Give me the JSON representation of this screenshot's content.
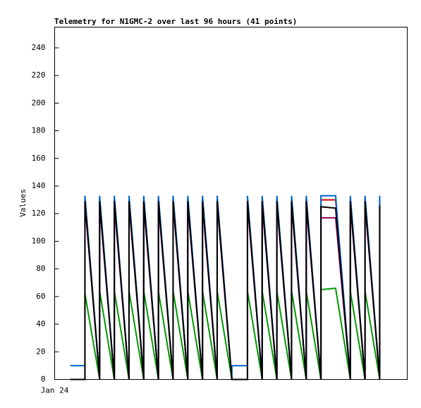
{
  "chart_data": {
    "type": "line",
    "title": "Telemetry for N1GMC-2 over last 96 hours (41 points)",
    "y_label": "Values",
    "xlim": [
      0,
      96
    ],
    "xticks": [
      {
        "value": 0,
        "label": "Jan 24"
      }
    ],
    "ylim": [
      0,
      255
    ],
    "yticks": [
      0,
      20,
      40,
      60,
      80,
      100,
      120,
      140,
      160,
      180,
      200,
      220,
      240
    ],
    "x": [
      4.25,
      8.25,
      8.25,
      12.25,
      12.25,
      16.25,
      16.25,
      20.25,
      20.25,
      24.25,
      24.25,
      28.25,
      28.25,
      32.25,
      32.25,
      36.25,
      36.25,
      40.25,
      40.25,
      44.25,
      44.25,
      48.25,
      48.25,
      52.5,
      52.5,
      56.5,
      56.5,
      60.5,
      60.5,
      64.5,
      64.5,
      68.5,
      68.5,
      72.5,
      72.5,
      76.5,
      80.5,
      80.5,
      84.5,
      84.5,
      88.5,
      88.5
    ],
    "series": [
      {
        "color": "#009900",
        "values": [
          0,
          0,
          62,
          0,
          64,
          0,
          64,
          0,
          64,
          0,
          64,
          0,
          64,
          0,
          64,
          0,
          64,
          0,
          64,
          0,
          64,
          0,
          0,
          0,
          64,
          0,
          64,
          0,
          64,
          0,
          64,
          0,
          64,
          0,
          65,
          66,
          0,
          64,
          0,
          64,
          0,
          64
        ]
      },
      {
        "color": "#990066",
        "values": [
          0,
          0,
          127,
          0,
          127,
          0,
          127,
          0,
          127,
          0,
          127,
          0,
          127,
          0,
          127,
          0,
          127,
          0,
          127,
          0,
          127,
          0,
          0,
          0,
          127,
          0,
          127,
          0,
          127,
          0,
          127,
          0,
          127,
          0,
          117,
          117,
          0,
          127,
          0,
          127,
          0,
          127
        ]
      },
      {
        "color": "#cc0000",
        "values": [
          0,
          0,
          131,
          0,
          131,
          0,
          131,
          0,
          131,
          0,
          131,
          0,
          131,
          0,
          131,
          0,
          131,
          0,
          131,
          0,
          131,
          0,
          0,
          0,
          131,
          0,
          131,
          0,
          131,
          0,
          131,
          0,
          131,
          0,
          130,
          130,
          0,
          131,
          0,
          131,
          0,
          131
        ]
      },
      {
        "color": "#0066cc",
        "values": [
          10,
          10,
          133,
          0,
          133,
          0,
          133,
          0,
          133,
          0,
          133,
          0,
          133,
          0,
          133,
          0,
          133,
          0,
          133,
          0,
          133,
          0,
          10,
          10,
          133,
          0,
          133,
          0,
          133,
          0,
          133,
          0,
          133,
          0,
          133,
          133,
          0,
          133,
          0,
          133,
          0,
          133
        ]
      },
      {
        "color": "#000000",
        "values": [
          0,
          0,
          129,
          0,
          129,
          0,
          129,
          0,
          129,
          0,
          129,
          0,
          129,
          0,
          129,
          0,
          129,
          0,
          129,
          0,
          129,
          0,
          0,
          0,
          129,
          0,
          129,
          0,
          129,
          0,
          129,
          0,
          129,
          0,
          125,
          124,
          0,
          129,
          0,
          129,
          0,
          126
        ]
      }
    ]
  }
}
